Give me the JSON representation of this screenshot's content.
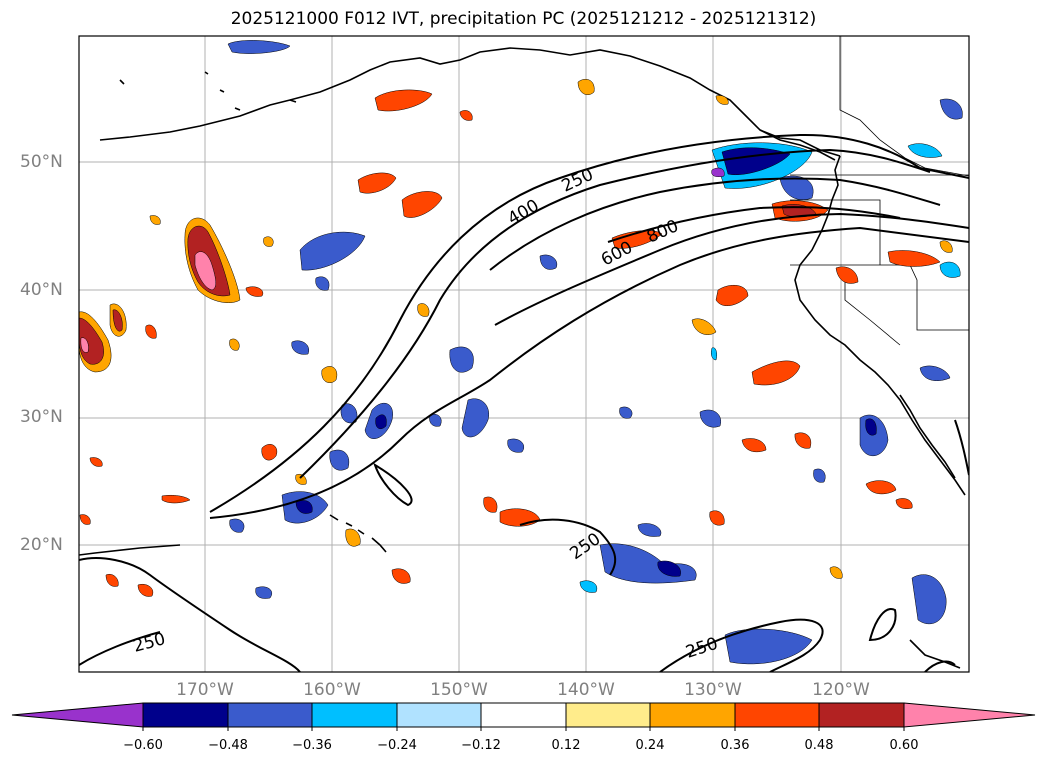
{
  "title": "2025121000 F012 IVT, precipitation PC (2025121212 - 2025121312)",
  "map": {
    "lat_labels": [
      "50°N",
      "40°N",
      "30°N",
      "20°N"
    ],
    "lon_labels": [
      "170°W",
      "160°W",
      "150°W",
      "140°W",
      "130°W",
      "120°W"
    ],
    "ivt_contour_labels": [
      "250",
      "400",
      "600",
      "800",
      "250",
      "250",
      "250"
    ]
  },
  "colorbar": {
    "ticks": [
      "−0.60",
      "−0.48",
      "−0.36",
      "−0.24",
      "−0.12",
      "0.12",
      "0.24",
      "0.36",
      "0.48",
      "0.60"
    ],
    "colors": {
      "extend_min": "#9932cc",
      "neg_060": "#00008b",
      "neg_048": "#3a5bcc",
      "neg_036": "#00bfff",
      "neg_024": "#b0e2ff",
      "neutral": "#ffffff",
      "pos_012": "#ffec8b",
      "pos_024": "#ffa500",
      "pos_036": "#ff4500",
      "pos_048": "#b22222",
      "extend_max": "#ff82ab"
    }
  }
}
